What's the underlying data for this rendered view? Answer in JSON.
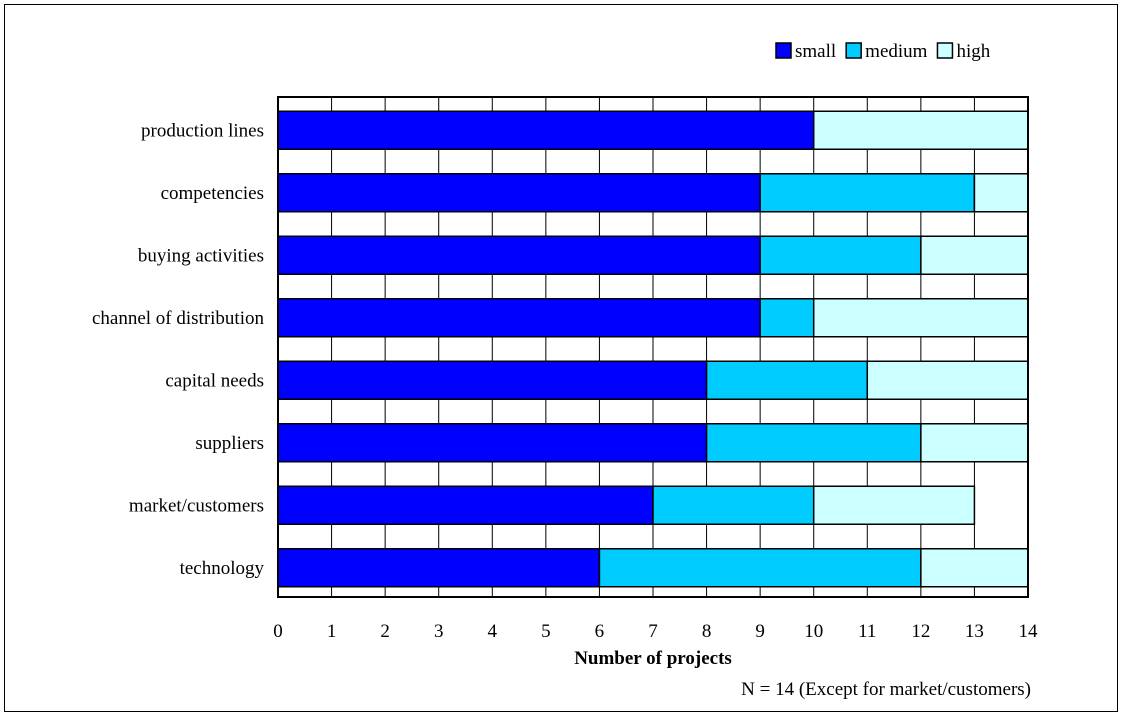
{
  "chart_data": {
    "type": "bar",
    "orientation": "horizontal",
    "stacked": true,
    "categories": [
      "production lines",
      "competencies",
      "buying activities",
      "channel of distribution",
      "capital needs",
      "suppliers",
      "market/customers",
      "technology"
    ],
    "series": [
      {
        "name": "small",
        "color": "#0000ff",
        "values": [
          10,
          9,
          9,
          9,
          8,
          8,
          7,
          6
        ]
      },
      {
        "name": "medium",
        "color": "#00ccff",
        "values": [
          0,
          4,
          3,
          1,
          3,
          4,
          3,
          6
        ]
      },
      {
        "name": "high",
        "color": "#ccffff",
        "values": [
          4,
          1,
          2,
          4,
          3,
          2,
          3,
          2
        ]
      }
    ],
    "xlabel": "Number of projects",
    "ylabel": "",
    "xlim": [
      0,
      14
    ],
    "xticks": [
      "0",
      "1",
      "2",
      "3",
      "4",
      "5",
      "6",
      "7",
      "8",
      "9",
      "10",
      "11",
      "12",
      "13",
      "14"
    ],
    "grid": true,
    "legend_position": "top-right",
    "note": "N = 14  (Except for market/customers)"
  }
}
